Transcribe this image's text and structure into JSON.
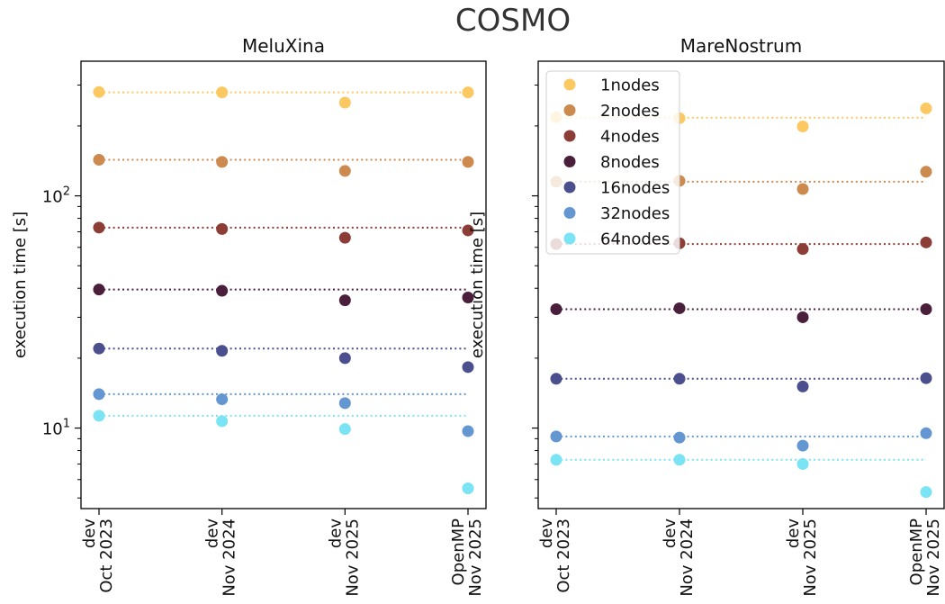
{
  "figure": {
    "title": "COSMO"
  },
  "legend": [
    "1nodes",
    "2nodes",
    "4nodes",
    "8nodes",
    "16nodes",
    "32nodes",
    "64nodes"
  ],
  "colors": [
    "#fcc862",
    "#cd8a4f",
    "#8c3d36",
    "#4a1f3c",
    "#4b4f8e",
    "#6497d1",
    "#7ae3f4"
  ],
  "chart_data": [
    {
      "type": "scatter",
      "title": "MeluXina",
      "ylabel": "execution time [s]",
      "yscale": "log",
      "ylim": [
        4.5,
        380
      ],
      "yticks": [
        {
          "value": 10,
          "base": "10",
          "exp": "1"
        },
        {
          "value": 100,
          "base": "10",
          "exp": "2"
        }
      ],
      "categories": [
        [
          "dev",
          "Oct 2023"
        ],
        [
          "dev",
          "Nov 2024"
        ],
        [
          "dev",
          "Nov 2025"
        ],
        [
          "OpenMP",
          "Nov 2025"
        ]
      ],
      "series": [
        {
          "name": "1nodes",
          "values": [
            280,
            279,
            252,
            279
          ],
          "baseline": 279
        },
        {
          "name": "2nodes",
          "values": [
            143,
            140,
            128,
            140
          ],
          "baseline": 143
        },
        {
          "name": "4nodes",
          "values": [
            73,
            72,
            66,
            71
          ],
          "baseline": 73
        },
        {
          "name": "8nodes",
          "values": [
            39.5,
            39,
            35.5,
            36.5
          ],
          "baseline": 39.5
        },
        {
          "name": "16nodes",
          "values": [
            22,
            21.5,
            20,
            18.3
          ],
          "baseline": 22
        },
        {
          "name": "32nodes",
          "values": [
            14,
            13.3,
            12.8,
            9.7
          ],
          "baseline": 14
        },
        {
          "name": "64nodes",
          "values": [
            11.3,
            10.7,
            9.9,
            5.5
          ],
          "baseline": 11.3
        }
      ]
    },
    {
      "type": "scatter",
      "title": "MareNostrum",
      "ylabel": "execution time [s]",
      "yscale": "log",
      "ylim": [
        4.5,
        380
      ],
      "yticks": [
        {
          "value": 10,
          "base": "10",
          "exp": "1"
        },
        {
          "value": 100,
          "base": "10",
          "exp": "2"
        }
      ],
      "categories": [
        [
          "dev",
          "Oct 2023"
        ],
        [
          "dev",
          "Nov 2024"
        ],
        [
          "dev",
          "Nov 2025"
        ],
        [
          "OpenMP",
          "Nov 2025"
        ]
      ],
      "series": [
        {
          "name": "1nodes",
          "values": [
            218,
            216,
            199,
            238
          ],
          "baseline": 217
        },
        {
          "name": "2nodes",
          "values": [
            115,
            116,
            107,
            127
          ],
          "baseline": 115
        },
        {
          "name": "4nodes",
          "values": [
            62,
            62.5,
            59,
            63
          ],
          "baseline": 62
        },
        {
          "name": "8nodes",
          "values": [
            32.5,
            32.8,
            30,
            32.5
          ],
          "baseline": 32.5
        },
        {
          "name": "16nodes",
          "values": [
            16.3,
            16.3,
            15.1,
            16.4
          ],
          "baseline": 16.3
        },
        {
          "name": "32nodes",
          "values": [
            9.2,
            9.1,
            8.4,
            9.5
          ],
          "baseline": 9.2
        },
        {
          "name": "64nodes",
          "values": [
            7.3,
            7.3,
            7.0,
            5.3
          ],
          "baseline": 7.3
        }
      ]
    }
  ]
}
